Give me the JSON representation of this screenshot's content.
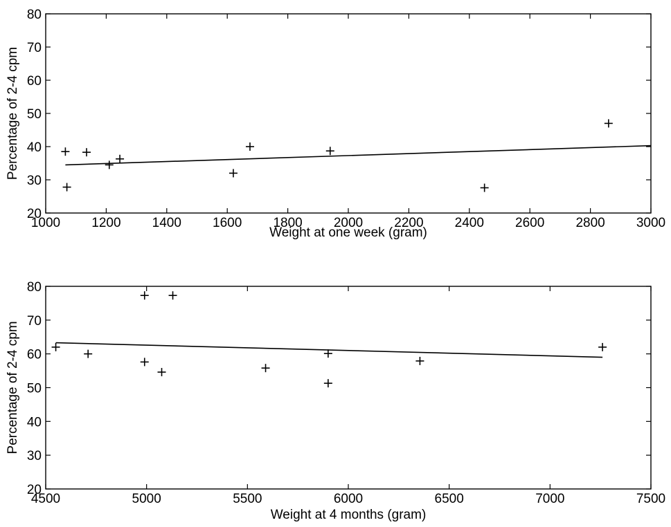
{
  "chart_data": [
    {
      "type": "scatter",
      "title": "",
      "xlabel": "Weight at one week (gram)",
      "ylabel": "Percentage of 2-4 cpm",
      "xlim": [
        1000,
        3000
      ],
      "ylim": [
        20,
        80
      ],
      "xticks": [
        1000,
        1200,
        1400,
        1600,
        1800,
        2000,
        2200,
        2400,
        2600,
        2800,
        3000
      ],
      "yticks": [
        20,
        30,
        40,
        50,
        60,
        70,
        80
      ],
      "grid": false,
      "marker": "+",
      "points": [
        {
          "x": 1065,
          "y": 38.5
        },
        {
          "x": 1070,
          "y": 27.8
        },
        {
          "x": 1135,
          "y": 38.3
        },
        {
          "x": 1210,
          "y": 34.5
        },
        {
          "x": 1245,
          "y": 36.3
        },
        {
          "x": 1620,
          "y": 32.0
        },
        {
          "x": 1675,
          "y": 40.0
        },
        {
          "x": 1940,
          "y": 38.7
        },
        {
          "x": 2450,
          "y": 27.6
        },
        {
          "x": 2860,
          "y": 47.0
        }
      ],
      "fit_line": [
        {
          "x": 1065,
          "y": 34.5
        },
        {
          "x": 3000,
          "y": 40.3
        }
      ]
    },
    {
      "type": "scatter",
      "title": "",
      "xlabel": "Weight at 4 months (gram)",
      "ylabel": "Percentage of 2-4 cpm",
      "xlim": [
        4500,
        7500
      ],
      "ylim": [
        20,
        80
      ],
      "xticks": [
        4500,
        5000,
        5500,
        6000,
        6500,
        7000,
        7500
      ],
      "yticks": [
        20,
        30,
        40,
        50,
        60,
        70,
        80
      ],
      "grid": false,
      "marker": "+",
      "points": [
        {
          "x": 4550,
          "y": 62.0
        },
        {
          "x": 4710,
          "y": 60.0
        },
        {
          "x": 4990,
          "y": 77.3
        },
        {
          "x": 4990,
          "y": 57.6
        },
        {
          "x": 5075,
          "y": 54.6
        },
        {
          "x": 5130,
          "y": 77.3
        },
        {
          "x": 5590,
          "y": 55.8
        },
        {
          "x": 5900,
          "y": 60.1
        },
        {
          "x": 5900,
          "y": 51.3
        },
        {
          "x": 6355,
          "y": 57.9
        },
        {
          "x": 7260,
          "y": 62.0
        }
      ],
      "fit_line": [
        {
          "x": 4550,
          "y": 63.3
        },
        {
          "x": 7260,
          "y": 59.0
        }
      ]
    }
  ]
}
